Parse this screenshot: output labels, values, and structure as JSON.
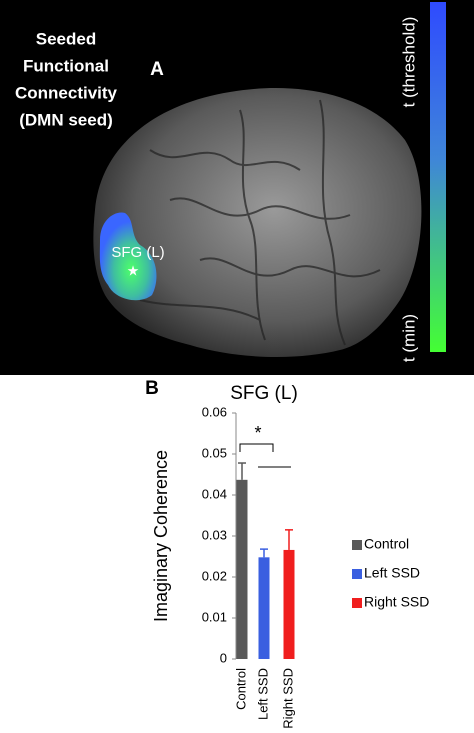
{
  "panel_a": {
    "label": "A",
    "title": [
      "Seeded",
      "Functional",
      "Connectivity",
      "(DMN seed)"
    ],
    "seed_label": "SFG (L)",
    "colorbar_top": "t (threshold)",
    "colorbar_bottom": "t (min)"
  },
  "chart_data": {
    "type": "bar",
    "panel_label": "B",
    "title": "SFG (L)",
    "y_label": "Imaginary Coherence",
    "categories": [
      "Control",
      "Left SSD",
      "Right SSD"
    ],
    "values": [
      0.0437,
      0.0248,
      0.0266
    ],
    "errors": [
      0.0041,
      0.002,
      0.0049
    ],
    "colors": [
      "#595959",
      "#3a5fe0",
      "#f01e1e"
    ],
    "ylim": [
      0,
      0.06
    ],
    "yticks": [
      0,
      0.01,
      0.02,
      0.03,
      0.04,
      0.05,
      0.06
    ],
    "annotation": "*",
    "legend": "right"
  }
}
